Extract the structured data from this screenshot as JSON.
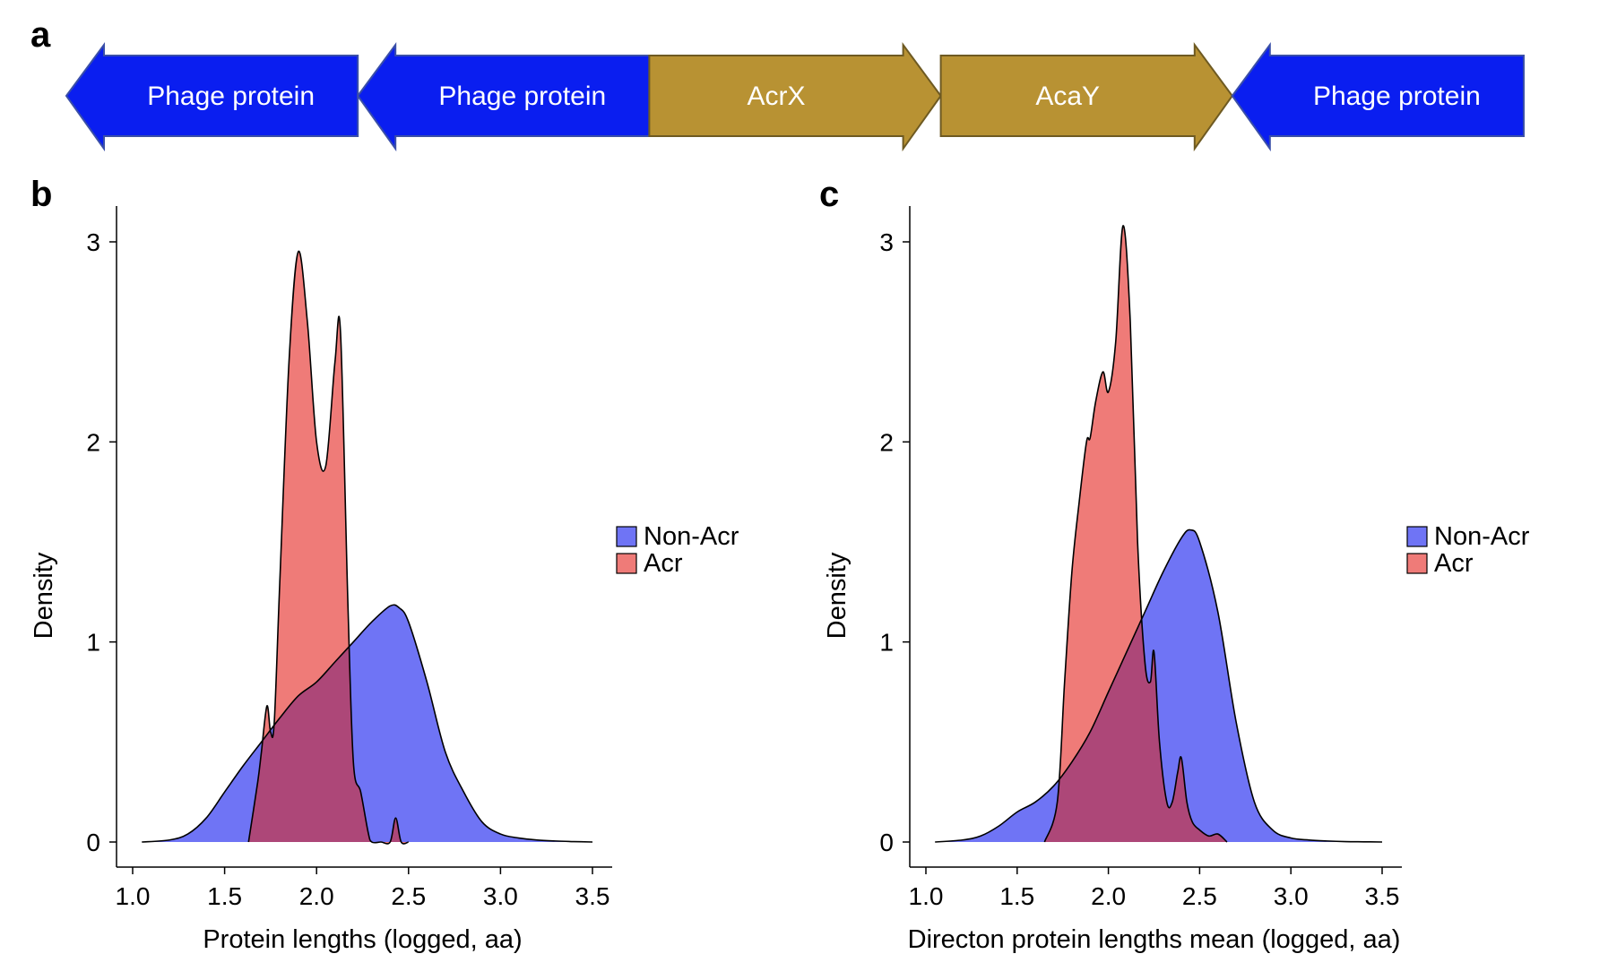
{
  "panel_labels": {
    "a": "a",
    "b": "b",
    "c": "c"
  },
  "colors": {
    "phage": "#0a1ef0",
    "acr_gene": "#b89233",
    "non_acr": "#6f74f5",
    "acr": "#ef7b78",
    "overlap": "#ad4778"
  },
  "genes": [
    {
      "label": "Phage protein",
      "direction": "left",
      "kind": "phage"
    },
    {
      "label": "Phage protein",
      "direction": "left",
      "kind": "phage"
    },
    {
      "label": "AcrX",
      "direction": "right",
      "kind": "acr_gene"
    },
    {
      "label": "AcaY",
      "direction": "right",
      "kind": "acr_gene"
    },
    {
      "label": "Phage protein",
      "direction": "left",
      "kind": "phage"
    }
  ],
  "chart_data": [
    {
      "panel": "b",
      "type": "area",
      "xlabel": "Protein lengths (logged, aa)",
      "ylabel": "Density",
      "xlim": [
        1.0,
        3.5
      ],
      "ylim": [
        0,
        3.0
      ],
      "xticks": [
        "1.0",
        "1.5",
        "2.0",
        "2.5",
        "3.0",
        "3.5"
      ],
      "yticks": [
        "0",
        "1",
        "2",
        "3"
      ],
      "legend": {
        "position": "right",
        "entries": [
          "Non-Acr",
          "Acr"
        ]
      },
      "series": [
        {
          "name": "Non-Acr",
          "x": [
            1.05,
            1.2,
            1.3,
            1.4,
            1.5,
            1.6,
            1.7,
            1.8,
            1.9,
            2.0,
            2.1,
            2.2,
            2.3,
            2.4,
            2.45,
            2.5,
            2.6,
            2.7,
            2.8,
            2.9,
            3.0,
            3.1,
            3.2,
            3.3,
            3.4,
            3.5
          ],
          "y": [
            0.0,
            0.01,
            0.04,
            0.12,
            0.25,
            0.38,
            0.5,
            0.62,
            0.73,
            0.8,
            0.9,
            1.0,
            1.1,
            1.18,
            1.17,
            1.1,
            0.8,
            0.45,
            0.25,
            0.1,
            0.04,
            0.02,
            0.01,
            0.005,
            0.002,
            0.0
          ]
        },
        {
          "name": "Acr",
          "x": [
            1.63,
            1.68,
            1.7,
            1.73,
            1.75,
            1.77,
            1.8,
            1.85,
            1.9,
            1.95,
            2.0,
            2.05,
            2.1,
            2.13,
            2.17,
            2.2,
            2.24,
            2.28,
            2.3,
            2.35,
            2.4,
            2.43,
            2.46,
            2.5
          ],
          "y": [
            0.0,
            0.3,
            0.45,
            0.68,
            0.55,
            0.6,
            1.3,
            2.4,
            2.95,
            2.6,
            2.0,
            1.88,
            2.4,
            2.55,
            1.2,
            0.4,
            0.25,
            0.05,
            0.0,
            0.0,
            0.0,
            0.12,
            0.0,
            0.0
          ]
        }
      ]
    },
    {
      "panel": "c",
      "type": "area",
      "xlabel": "Directon protein lengths mean (logged, aa)",
      "ylabel": "Density",
      "xlim": [
        1.0,
        3.5
      ],
      "ylim": [
        0,
        3.0
      ],
      "xticks": [
        "1.0",
        "1.5",
        "2.0",
        "2.5",
        "3.0",
        "3.5"
      ],
      "yticks": [
        "0",
        "1",
        "2",
        "3"
      ],
      "legend": {
        "position": "right",
        "entries": [
          "Non-Acr",
          "Acr"
        ]
      },
      "series": [
        {
          "name": "Non-Acr",
          "x": [
            1.05,
            1.2,
            1.3,
            1.4,
            1.5,
            1.6,
            1.7,
            1.8,
            1.9,
            2.0,
            2.1,
            2.2,
            2.3,
            2.4,
            2.45,
            2.5,
            2.6,
            2.7,
            2.8,
            2.9,
            3.0,
            3.1,
            3.2,
            3.3,
            3.4,
            3.5
          ],
          "y": [
            0.0,
            0.01,
            0.03,
            0.08,
            0.15,
            0.2,
            0.28,
            0.4,
            0.55,
            0.75,
            0.95,
            1.15,
            1.35,
            1.52,
            1.56,
            1.5,
            1.15,
            0.6,
            0.2,
            0.06,
            0.02,
            0.01,
            0.005,
            0.002,
            0.001,
            0.0
          ]
        },
        {
          "name": "Acr",
          "x": [
            1.65,
            1.72,
            1.76,
            1.8,
            1.84,
            1.88,
            1.9,
            1.93,
            1.97,
            2.0,
            2.04,
            2.08,
            2.12,
            2.16,
            2.2,
            2.23,
            2.25,
            2.28,
            2.32,
            2.35,
            2.38,
            2.4,
            2.43,
            2.46,
            2.5,
            2.55,
            2.6,
            2.65
          ],
          "y": [
            0.0,
            0.2,
            0.8,
            1.35,
            1.7,
            2.0,
            2.02,
            2.2,
            2.35,
            2.25,
            2.5,
            3.08,
            2.6,
            1.5,
            0.9,
            0.8,
            0.95,
            0.5,
            0.2,
            0.2,
            0.35,
            0.42,
            0.2,
            0.1,
            0.06,
            0.03,
            0.04,
            0.0
          ]
        }
      ]
    }
  ]
}
